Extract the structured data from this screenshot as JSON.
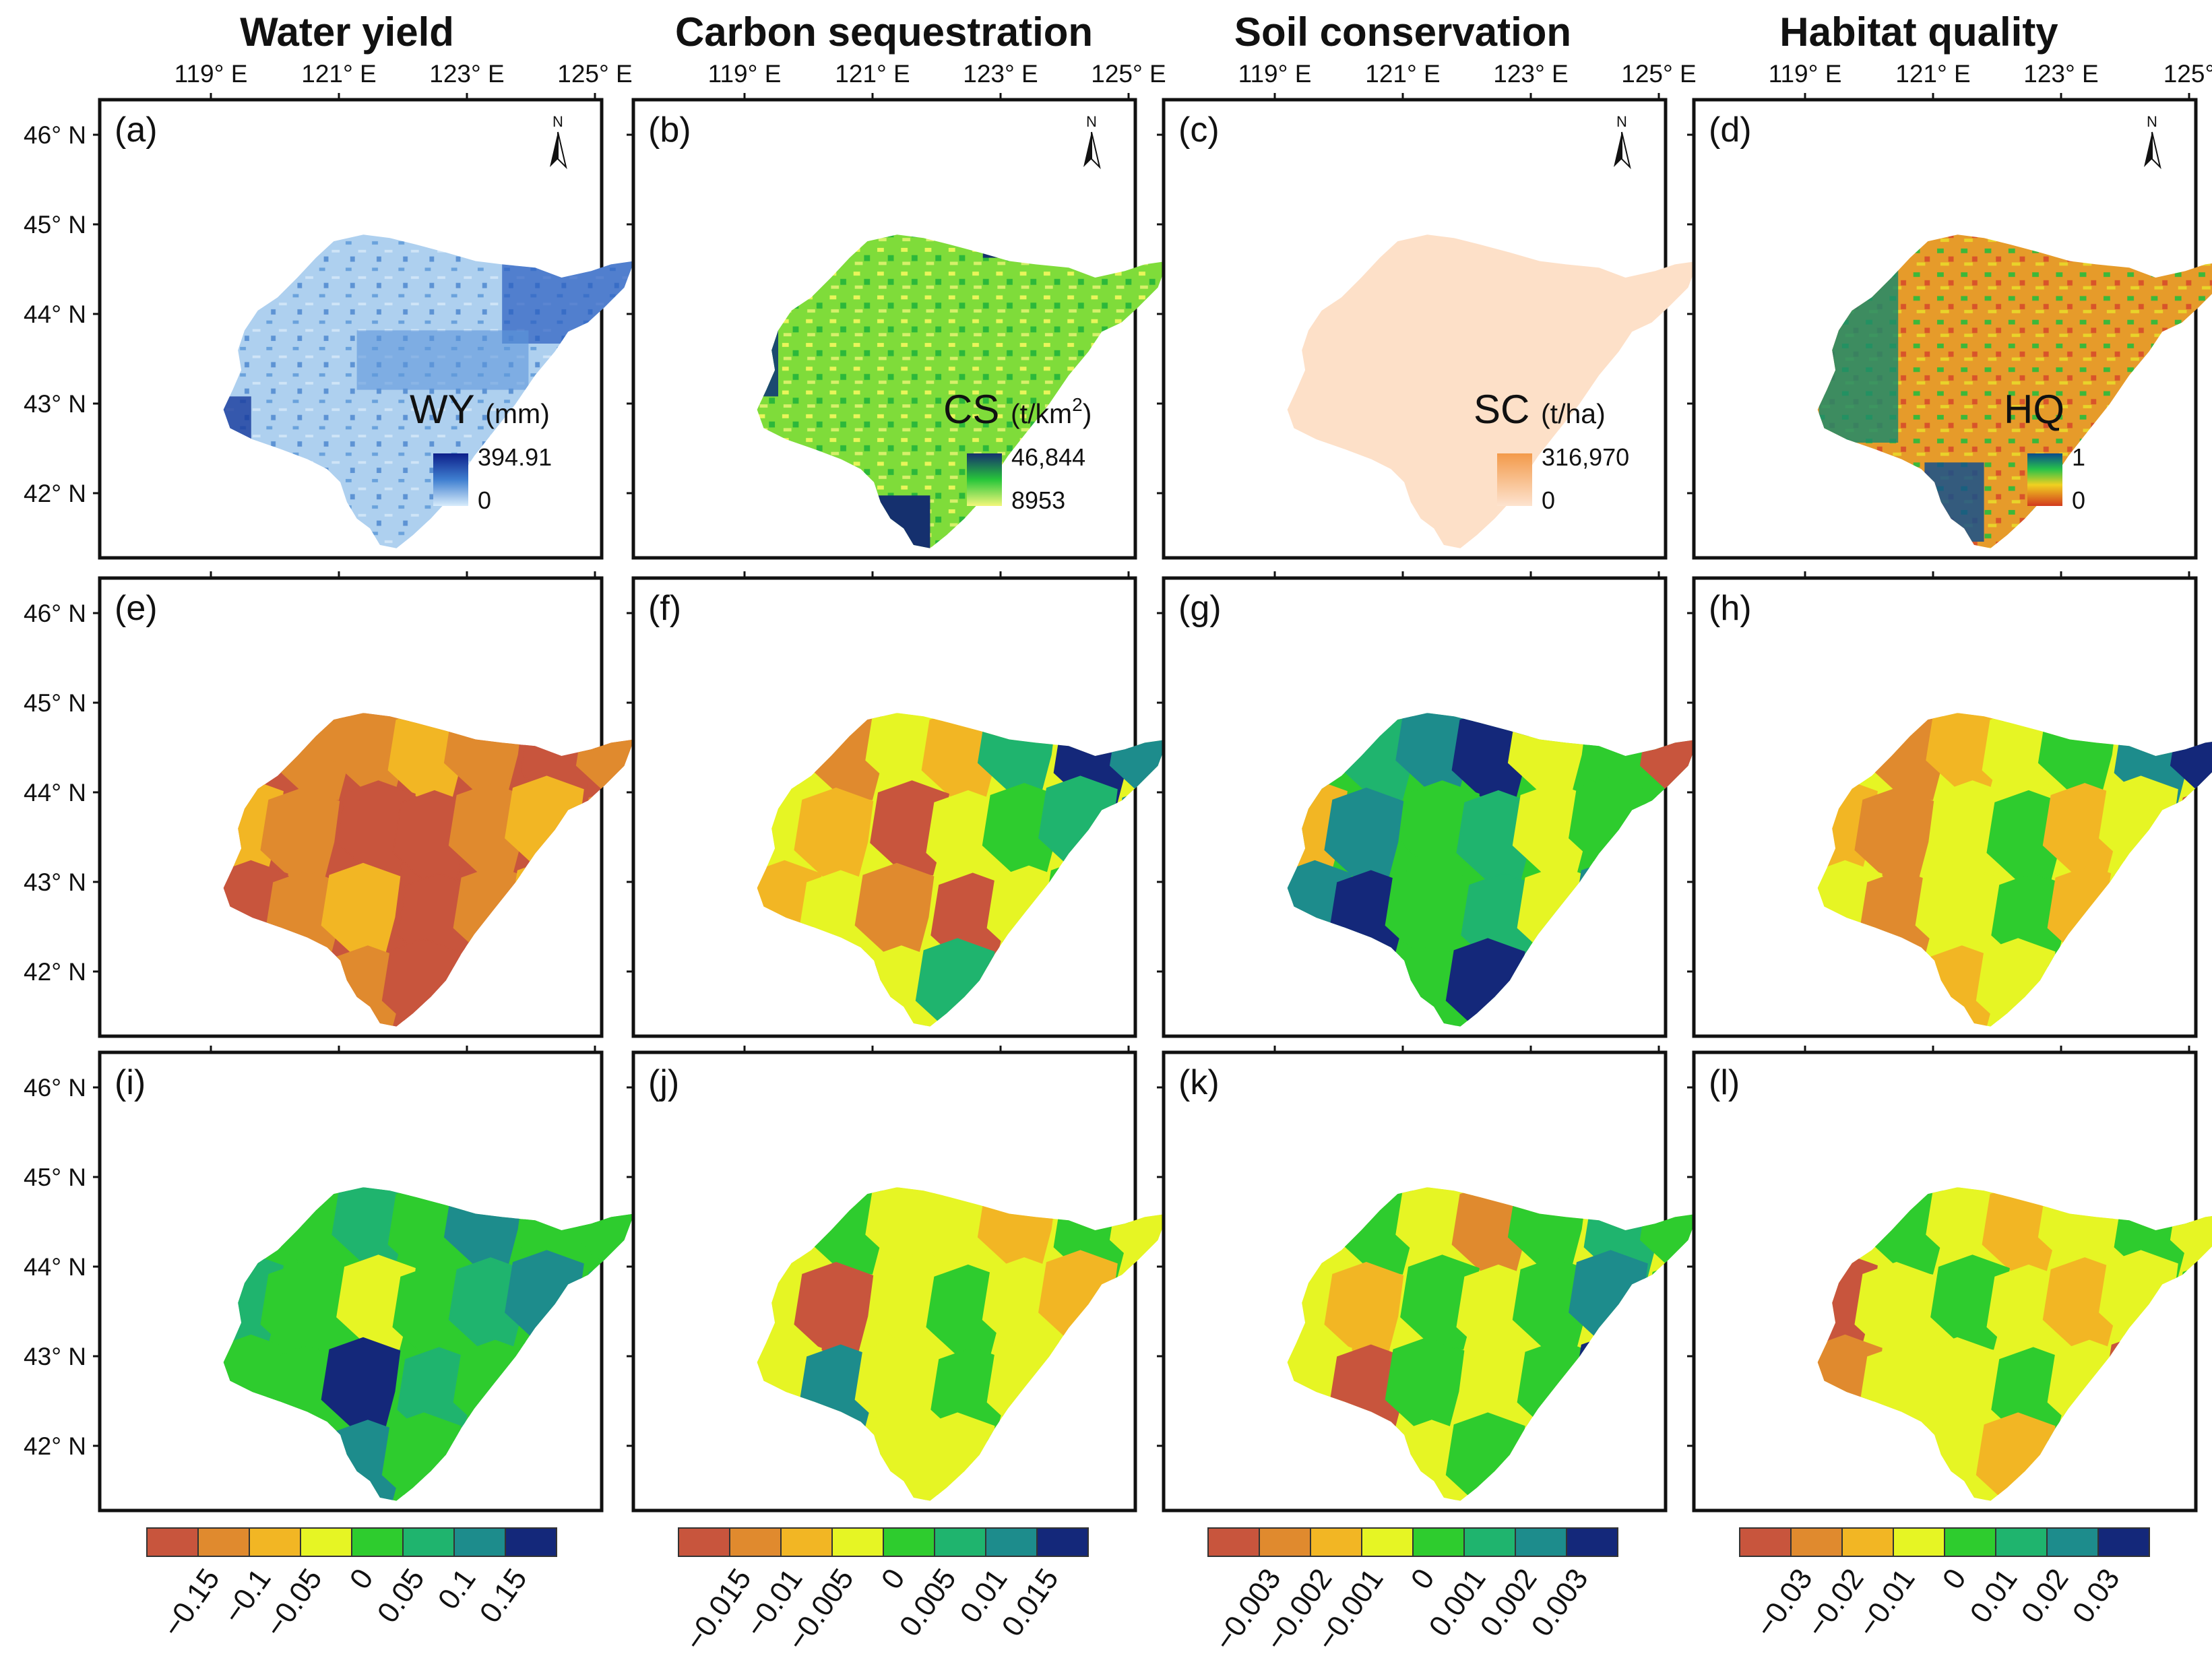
{
  "columns": [
    {
      "title": "Water yield"
    },
    {
      "title": "Carbon sequestration"
    },
    {
      "title": "Soil conservation"
    },
    {
      "title": "Habitat quality"
    }
  ],
  "longitude_labels": [
    "119° E",
    "121° E",
    "123° E",
    "125° E"
  ],
  "longitude_labels_last_column": [
    "119° E",
    "121° E",
    "123° E",
    "125°"
  ],
  "latitude_labels": [
    "46° N",
    "45° N",
    "44° N",
    "43° N",
    "42° N"
  ],
  "panel_labels": [
    "(a)",
    "(b)",
    "(c)",
    "(d)",
    "(e)",
    "(f)",
    "(g)",
    "(h)",
    "(i)",
    "(j)",
    "(k)",
    "(l)"
  ],
  "top_legends": [
    {
      "variable": "WY",
      "unit": "(mm)",
      "max": "394.91",
      "min": "0",
      "color_high": "#0d1f8a",
      "color_low": "#d8ecfb"
    },
    {
      "variable": "CS",
      "unit": "(t/km",
      "unit_sup": "2",
      "unit_end": ")",
      "max": "46,844",
      "min": "8953",
      "color_high": "#15306e",
      "color_low": "#f3f77a"
    },
    {
      "variable": "SC",
      "unit": "(t/ha)",
      "max": "316,970",
      "min": "0",
      "color_high": "#f39a4a",
      "color_low": "#fde3cf"
    },
    {
      "variable": "HQ",
      "unit": "",
      "max": "1",
      "min": "0",
      "color_high": "#0a4a8c",
      "color_low": "#d33a1e"
    }
  ],
  "north_arrow": "N",
  "class_colors": [
    "#c8553d",
    "#e08a2e",
    "#f2b624",
    "#e6f524",
    "#2ecc2e",
    "#1fb46e",
    "#1d8c8c",
    "#14287a"
  ],
  "colorbar_ticks": [
    [
      "−0.15",
      "−0.1",
      "−0.05",
      "0",
      "0.05",
      "0.1",
      "0.15"
    ],
    [
      "−0.015",
      "−0.01",
      "−0.005",
      "0",
      "0.005",
      "0.01",
      "0.015"
    ],
    [
      "−0.003",
      "−0.002",
      "−0.001",
      "0",
      "0.001",
      "0.002",
      "0.003"
    ],
    [
      "−0.03",
      "−0.02",
      "−0.01",
      "0",
      "0.01",
      "0.02",
      "0.03"
    ]
  ],
  "row2_classes": [
    [
      0,
      1,
      1,
      2,
      1,
      0,
      1,
      2,
      1,
      0,
      0,
      1,
      2,
      1,
      0,
      1,
      2,
      0,
      1,
      2,
      1,
      0,
      2,
      1,
      0,
      1,
      0,
      1
    ],
    [
      3,
      1,
      3,
      2,
      5,
      7,
      6,
      3,
      2,
      0,
      3,
      4,
      5,
      6,
      2,
      3,
      1,
      0,
      3,
      4,
      2,
      3,
      0,
      3,
      5,
      3,
      1,
      3
    ],
    [
      4,
      5,
      6,
      7,
      3,
      4,
      0,
      2,
      6,
      4,
      5,
      3,
      4,
      4,
      6,
      7,
      4,
      5,
      3,
      6,
      4,
      4,
      5,
      4,
      7,
      3,
      4,
      5
    ],
    [
      3,
      1,
      2,
      3,
      4,
      6,
      7,
      2,
      1,
      3,
      4,
      2,
      3,
      0,
      3,
      1,
      3,
      4,
      2,
      3,
      1,
      4,
      3,
      2,
      3,
      4,
      0,
      3
    ]
  ],
  "row3_classes": [
    [
      4,
      4,
      5,
      4,
      6,
      4,
      4,
      5,
      4,
      3,
      4,
      5,
      6,
      5,
      4,
      4,
      7,
      5,
      4,
      4,
      3,
      4,
      5,
      6,
      4,
      3,
      4,
      5
    ],
    [
      3,
      4,
      3,
      3,
      2,
      4,
      3,
      3,
      0,
      3,
      4,
      3,
      2,
      3,
      3,
      6,
      3,
      4,
      3,
      3,
      2,
      3,
      4,
      3,
      3,
      1,
      3,
      4
    ],
    [
      3,
      4,
      3,
      1,
      4,
      5,
      4,
      3,
      2,
      4,
      3,
      4,
      6,
      4,
      3,
      0,
      4,
      3,
      4,
      7,
      3,
      4,
      1,
      3,
      4,
      3,
      4,
      3
    ],
    [
      3,
      4,
      3,
      2,
      3,
      4,
      3,
      0,
      3,
      4,
      3,
      2,
      3,
      4,
      1,
      3,
      3,
      4,
      3,
      0,
      3,
      4,
      3,
      3,
      2,
      3,
      4,
      3
    ]
  ]
}
